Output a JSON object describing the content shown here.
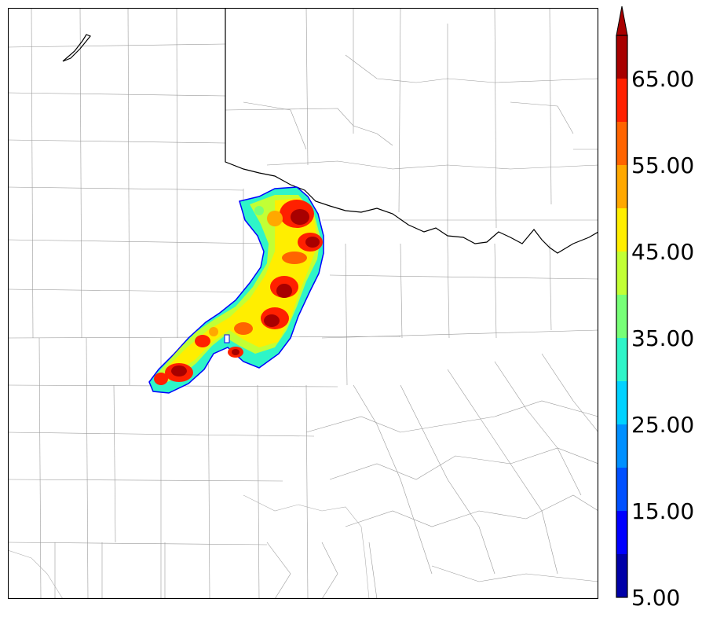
{
  "colorbar": {
    "tick_labels": [
      "5.00",
      "15.00",
      "25.00",
      "35.00",
      "45.00",
      "55.00",
      "65.00"
    ],
    "levels": [
      5,
      10,
      15,
      20,
      25,
      30,
      35,
      40,
      45,
      50,
      55,
      60,
      65,
      70
    ],
    "colors": [
      "#0000a8",
      "#0000ff",
      "#0050ff",
      "#0090ff",
      "#00d2ff",
      "#2ef5c8",
      "#77ff77",
      "#c2ff35",
      "#ffee00",
      "#ffa800",
      "#ff6400",
      "#ff2000",
      "#a80000"
    ],
    "extend": "max"
  }
}
